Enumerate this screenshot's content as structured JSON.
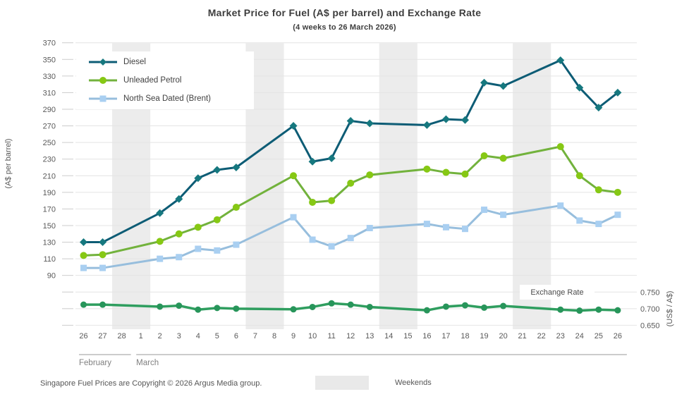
{
  "chart_data": {
    "type": "line",
    "title": "Market Price for Fuel (A$ per barrel) and Exchange Rate",
    "subtitle": "(4 weeks to 26 March 2026)",
    "x_labels": [
      "26",
      "27",
      "28",
      "1",
      "2",
      "3",
      "4",
      "5",
      "6",
      "7",
      "8",
      "9",
      "10",
      "11",
      "12",
      "13",
      "14",
      "15",
      "16",
      "17",
      "18",
      "19",
      "20",
      "21",
      "22",
      "23",
      "24",
      "25",
      "26"
    ],
    "month_groups": [
      {
        "label": "February",
        "start": 0,
        "end": 2
      },
      {
        "label": "March",
        "start": 3,
        "end": 28
      }
    ],
    "weekend_bands": [
      [
        2,
        3
      ],
      [
        9,
        10
      ],
      [
        16,
        17
      ],
      [
        23,
        24
      ]
    ],
    "y_axis_left": {
      "title": "(A$ per barrel)",
      "ticks": [
        "370",
        "350",
        "330",
        "310",
        "290",
        "270",
        "250",
        "230",
        "210",
        "190",
        "170",
        "150",
        "130",
        "110",
        "90"
      ],
      "ylim": [
        90,
        370
      ]
    },
    "y_axis_right": {
      "title": "(US$ / A$)",
      "ticks": [
        "0.750",
        "0.700",
        "0.650"
      ],
      "ylim": [
        0.65,
        0.75
      ]
    },
    "grid": true,
    "legend_position": "top-left-inside",
    "series": [
      {
        "name": "Diesel",
        "axis": "left",
        "marker": "diamond",
        "color": "#0d5c75",
        "marker_color": "#16787f",
        "values": [
          130,
          130,
          null,
          null,
          165,
          182,
          207,
          217,
          220,
          null,
          null,
          270,
          227,
          231,
          276,
          273,
          null,
          null,
          271,
          278,
          277,
          322,
          318,
          null,
          null,
          349,
          316,
          292,
          310
        ]
      },
      {
        "name": "Unleaded Petrol",
        "axis": "left",
        "marker": "circle",
        "color": "#72b23c",
        "marker_color": "#86c814",
        "values": [
          114,
          115,
          null,
          null,
          131,
          140,
          148,
          157,
          172,
          null,
          null,
          210,
          178,
          180,
          201,
          211,
          null,
          null,
          218,
          214,
          212,
          234,
          231,
          null,
          null,
          245,
          210,
          193,
          190
        ]
      },
      {
        "name": "North Sea Dated (Brent)",
        "axis": "left",
        "marker": "square",
        "color": "#97bedd",
        "marker_color": "#a9cff1",
        "values": [
          99,
          99,
          null,
          null,
          110,
          112,
          122,
          120,
          127,
          null,
          null,
          160,
          133,
          125,
          135,
          147,
          null,
          null,
          152,
          148,
          146,
          169,
          163,
          null,
          null,
          174,
          156,
          152,
          163
        ]
      },
      {
        "name": "Exchange Rate",
        "axis": "right",
        "marker": "circle",
        "color": "#2f9e5f",
        "marker_color": "#27955a",
        "values": [
          0.712,
          0.712,
          null,
          null,
          0.706,
          0.709,
          0.697,
          0.702,
          0.7,
          null,
          null,
          0.698,
          0.705,
          0.716,
          0.712,
          0.705,
          null,
          null,
          0.695,
          0.706,
          0.71,
          0.703,
          0.708,
          null,
          null,
          0.697,
          0.694,
          0.697,
          0.695
        ]
      }
    ],
    "colors": {
      "weekend_band": "#ececec",
      "gridline": "#e4e4e4",
      "tick_dash": "#cccccc",
      "axis_text": "#595959",
      "month_text": "#808080",
      "month_line": "#999999"
    }
  },
  "footer": {
    "copyright": "Singapore Fuel Prices are Copyright © 2026 Argus Media group.",
    "weekend_legend_label": "Weekends"
  }
}
